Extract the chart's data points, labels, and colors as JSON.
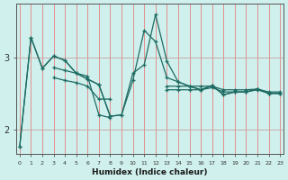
{
  "xlabel": "Humidex (Indice chaleur)",
  "bg_color": "#cff0ec",
  "line_color": "#1e6b63",
  "grid_color_v": "#f08080",
  "grid_color_h": "#d0b0b0",
  "x_values": [
    0,
    1,
    2,
    3,
    4,
    5,
    6,
    7,
    8,
    9,
    10,
    11,
    12,
    13,
    14,
    15,
    16,
    17,
    18,
    19,
    20,
    21,
    22,
    23
  ],
  "series1": [
    1.75,
    3.28,
    2.85,
    3.02,
    2.96,
    2.78,
    2.7,
    2.62,
    2.18,
    2.2,
    2.78,
    2.9,
    3.6,
    2.95,
    2.66,
    2.6,
    2.55,
    2.61,
    2.48,
    2.52,
    2.52,
    2.56,
    2.5,
    2.5
  ],
  "series2": [
    1.75,
    3.28,
    2.85,
    3.02,
    2.96,
    2.78,
    2.7,
    2.62,
    2.18,
    2.2,
    2.68,
    3.38,
    3.22,
    2.72,
    2.66,
    2.6,
    2.55,
    2.61,
    2.48,
    2.52,
    2.52,
    2.56,
    2.5,
    2.5
  ],
  "series3": [
    null,
    null,
    null,
    2.72,
    2.68,
    2.65,
    2.6,
    2.42,
    2.42,
    null,
    null,
    null,
    null,
    2.55,
    2.55,
    2.55,
    2.55,
    2.58,
    2.52,
    2.52,
    2.52,
    2.55,
    2.5,
    2.5
  ],
  "series4": [
    null,
    null,
    null,
    2.86,
    2.82,
    2.78,
    2.74,
    2.2,
    2.16,
    null,
    null,
    null,
    null,
    2.6,
    2.6,
    2.6,
    2.6,
    2.6,
    2.55,
    2.55,
    2.55,
    2.56,
    2.52,
    2.52
  ],
  "ylim": [
    1.65,
    3.75
  ],
  "yticks": [
    2,
    3
  ],
  "xlim": [
    -0.3,
    23.3
  ],
  "xtick_labels": [
    "0",
    "1",
    "2",
    "3",
    "4",
    "5",
    "6",
    "7",
    "8",
    "9",
    "10",
    "11",
    "12",
    "13",
    "14",
    "15",
    "16",
    "17",
    "18",
    "19",
    "20",
    "21",
    "22",
    "23"
  ]
}
